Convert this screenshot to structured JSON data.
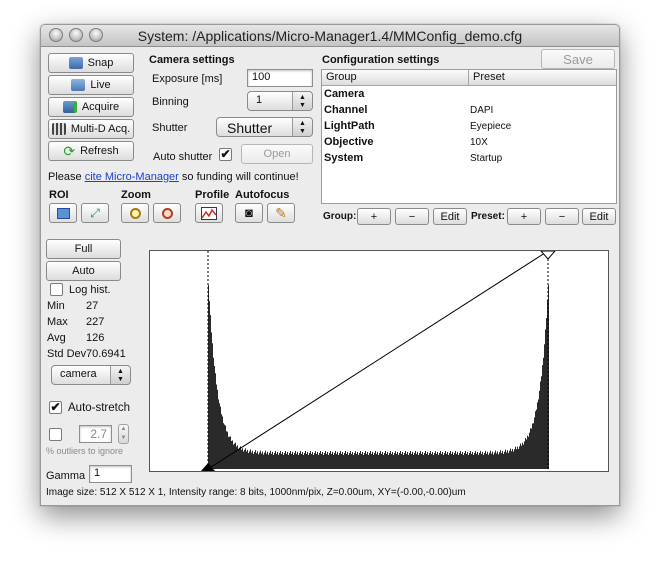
{
  "window": {
    "title": "System: /Applications/Micro-Manager1.4/MMConfig_demo.cfg"
  },
  "left_buttons": {
    "snap": "Snap",
    "live": "Live",
    "acquire": "Acquire",
    "multid": "Multi-D Acq.",
    "refresh": "Refresh"
  },
  "camera_settings": {
    "heading": "Camera settings",
    "exposure_label": "Exposure [ms]",
    "exposure_value": "100",
    "binning_label": "Binning",
    "binning_value": "1",
    "shutter_label": "Shutter",
    "shutter_value": "Shutter",
    "auto_shutter_label": "Auto shutter",
    "auto_shutter_checked": true,
    "open_button": "Open"
  },
  "config_settings": {
    "heading": "Configuration settings",
    "save_button": "Save",
    "columns": [
      "Group",
      "Preset"
    ],
    "rows": [
      {
        "group": "Camera",
        "preset": ""
      },
      {
        "group": "Channel",
        "preset": "DAPI"
      },
      {
        "group": "LightPath",
        "preset": "Eyepiece"
      },
      {
        "group": "Objective",
        "preset": "10X"
      },
      {
        "group": "System",
        "preset": "Startup"
      }
    ],
    "group_label": "Group:",
    "preset_label": "Preset:",
    "plus": "+",
    "minus": "−",
    "edit": "Edit"
  },
  "cite": {
    "prefix": "Please",
    "link": "cite Micro-Manager",
    "suffix": "so funding will continue!"
  },
  "tools": {
    "roi": "ROI",
    "zoom": "Zoom",
    "profile": "Profile",
    "autofocus": "Autofocus"
  },
  "histogram_panel": {
    "full_button": "Full",
    "auto_button": "Auto",
    "log_hist_label": "Log hist.",
    "stats": {
      "min_label": "Min",
      "min_value": "27",
      "max_label": "Max",
      "max_value": "227",
      "avg_label": "Avg",
      "avg_value": "126",
      "std_label": "Std Dev",
      "std_value": "70.6941"
    },
    "source_select": "camera",
    "auto_stretch_label": "Auto-stretch",
    "auto_stretch_checked": true,
    "outlier_value": "2.7",
    "outlier_label": "% outliers to ignore",
    "gamma_label": "Gamma",
    "gamma_value": "1"
  },
  "status": {
    "text": "Image size: 512 X 512 X 1, Intensity range: 8 bits, 1000nm/pix, Z=0.00um, XY=(-0.00,-0.00)um"
  },
  "colors": {
    "window_bg": "#ececec",
    "link": "#1a3fcc",
    "histogram_bars": "#2a2a2a"
  }
}
